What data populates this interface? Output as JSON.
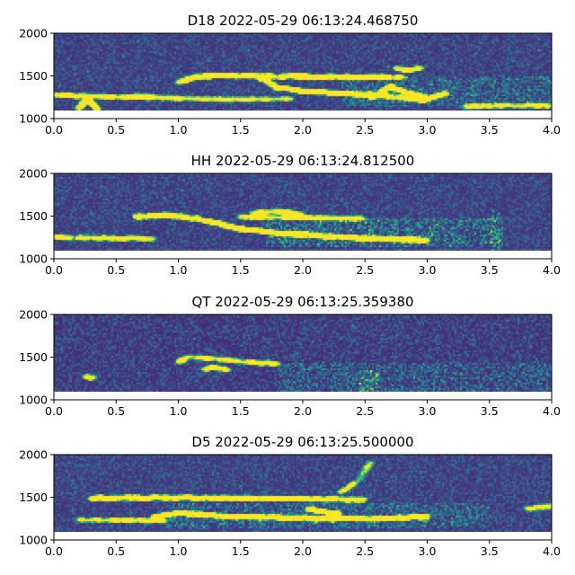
{
  "chart_data": [
    {
      "type": "heatmap",
      "title": "D18 2022-05-29 06:13:24.468750",
      "xlabel": "",
      "ylabel": "",
      "xlim": [
        0,
        4.0
      ],
      "ylim": [
        1000,
        2000
      ],
      "xticks": [
        "0.0",
        "0.5",
        "1.0",
        "1.5",
        "2.0",
        "2.5",
        "3.0",
        "3.5",
        "4.0"
      ],
      "yticks": [
        "1000",
        "1500",
        "2000"
      ],
      "visible_y_range": [
        1100,
        2000
      ],
      "colormap": "viridis",
      "background_level": 0.14,
      "noise_level": 0.22,
      "features": [
        {
          "kind": "curve",
          "points": [
            [
              1.0,
              1430
            ],
            [
              1.15,
              1490
            ],
            [
              1.3,
              1505
            ],
            [
              1.6,
              1500
            ],
            [
              2.0,
              1490
            ],
            [
              2.5,
              1485
            ],
            [
              2.8,
              1490
            ]
          ],
          "intensity": 0.85
        },
        {
          "kind": "curve",
          "points": [
            [
              1.65,
              1480
            ],
            [
              1.8,
              1360
            ],
            [
              2.0,
              1320
            ],
            [
              2.4,
              1290
            ],
            [
              2.7,
              1260
            ],
            [
              3.0,
              1210
            ]
          ],
          "intensity": 0.8
        },
        {
          "kind": "curve",
          "points": [
            [
              2.55,
              1240
            ],
            [
              2.7,
              1370
            ],
            [
              2.85,
              1300
            ],
            [
              3.0,
              1240
            ],
            [
              3.15,
              1290
            ]
          ],
          "intensity": 0.7
        },
        {
          "kind": "curve",
          "points": [
            [
              0.0,
              1280
            ],
            [
              0.3,
              1260
            ],
            [
              0.6,
              1250
            ],
            [
              0.8,
              1245
            ]
          ],
          "intensity": 0.6
        },
        {
          "kind": "curve",
          "points": [
            [
              0.2,
              1120
            ],
            [
              0.27,
              1230
            ],
            [
              0.35,
              1120
            ]
          ],
          "intensity": 0.8
        },
        {
          "kind": "curve",
          "points": [
            [
              0.65,
              1270
            ],
            [
              1.0,
              1235
            ],
            [
              1.5,
              1225
            ],
            [
              1.9,
              1230
            ]
          ],
          "intensity": 0.4
        },
        {
          "kind": "curve",
          "points": [
            [
              2.75,
              1590
            ],
            [
              2.85,
              1560
            ],
            [
              2.95,
              1590
            ]
          ],
          "intensity": 0.55
        },
        {
          "kind": "curve",
          "points": [
            [
              3.3,
              1140
            ],
            [
              3.6,
              1150
            ],
            [
              4.0,
              1150
            ]
          ],
          "intensity": 0.45
        },
        {
          "kind": "band",
          "x": [
            2.3,
            4.0
          ],
          "y": [
            1150,
            1500
          ],
          "intensity": 0.22
        }
      ]
    },
    {
      "type": "heatmap",
      "title": "HH 2022-05-29 06:13:24.812500",
      "xlabel": "",
      "ylabel": "",
      "xlim": [
        0,
        4.0
      ],
      "ylim": [
        1000,
        2000
      ],
      "xticks": [
        "0.0",
        "0.5",
        "1.0",
        "1.5",
        "2.0",
        "2.5",
        "3.0",
        "3.5",
        "4.0"
      ],
      "yticks": [
        "1000",
        "1500",
        "2000"
      ],
      "visible_y_range": [
        1100,
        2000
      ],
      "colormap": "viridis",
      "background_level": 0.14,
      "noise_level": 0.22,
      "features": [
        {
          "kind": "curve",
          "points": [
            [
              0.65,
              1490
            ],
            [
              0.9,
              1510
            ],
            [
              1.1,
              1480
            ],
            [
              1.3,
              1420
            ],
            [
              1.5,
              1350
            ],
            [
              1.8,
              1300
            ],
            [
              2.1,
              1270
            ],
            [
              2.5,
              1240
            ],
            [
              3.0,
              1220
            ]
          ],
          "intensity": 0.85
        },
        {
          "kind": "curve",
          "points": [
            [
              1.5,
              1490
            ],
            [
              2.0,
              1480
            ],
            [
              2.5,
              1470
            ]
          ],
          "intensity": 0.45
        },
        {
          "kind": "curve",
          "points": [
            [
              0.0,
              1250
            ],
            [
              0.4,
              1240
            ],
            [
              0.8,
              1235
            ]
          ],
          "intensity": 0.5
        },
        {
          "kind": "curve",
          "points": [
            [
              1.6,
              1530
            ],
            [
              1.8,
              1560
            ],
            [
              2.0,
              1520
            ]
          ],
          "intensity": 0.5
        },
        {
          "kind": "band",
          "x": [
            1.7,
            3.6
          ],
          "y": [
            1150,
            1480
          ],
          "intensity": 0.28
        },
        {
          "kind": "band",
          "x": [
            3.5,
            3.58
          ],
          "y": [
            1100,
            1600
          ],
          "intensity": 0.25
        }
      ]
    },
    {
      "type": "heatmap",
      "title": "QT 2022-05-29 06:13:25.359380",
      "xlabel": "",
      "ylabel": "",
      "xlim": [
        0,
        4.0
      ],
      "ylim": [
        1000,
        2000
      ],
      "xticks": [
        "0.0",
        "0.5",
        "1.0",
        "1.5",
        "2.0",
        "2.5",
        "3.0",
        "3.5",
        "4.0"
      ],
      "yticks": [
        "1000",
        "1500",
        "2000"
      ],
      "visible_y_range": [
        1100,
        2000
      ],
      "colormap": "viridis",
      "background_level": 0.12,
      "noise_level": 0.24,
      "features": [
        {
          "kind": "curve",
          "points": [
            [
              1.0,
              1440
            ],
            [
              1.05,
              1470
            ]
          ],
          "intensity": 0.9
        },
        {
          "kind": "curve",
          "points": [
            [
              1.05,
              1500
            ],
            [
              1.3,
              1480
            ],
            [
              1.6,
              1440
            ],
            [
              1.8,
              1420
            ]
          ],
          "intensity": 0.5
        },
        {
          "kind": "curve",
          "points": [
            [
              1.2,
              1360
            ],
            [
              1.3,
              1380
            ],
            [
              1.4,
              1350
            ]
          ],
          "intensity": 0.55
        },
        {
          "kind": "curve",
          "points": [
            [
              0.25,
              1270
            ],
            [
              0.32,
              1260
            ]
          ],
          "intensity": 0.7
        },
        {
          "kind": "band",
          "x": [
            1.8,
            4.0
          ],
          "y": [
            1100,
            1450
          ],
          "intensity": 0.2
        },
        {
          "kind": "band",
          "x": [
            2.45,
            2.6
          ],
          "y": [
            1100,
            1350
          ],
          "intensity": 0.35
        }
      ]
    },
    {
      "type": "heatmap",
      "title": "D5 2022-05-29 06:13:25.500000",
      "xlabel": "",
      "ylabel": "",
      "xlim": [
        0,
        4.0
      ],
      "ylim": [
        1000,
        2000
      ],
      "xticks": [
        "0.0",
        "0.5",
        "1.0",
        "1.5",
        "2.0",
        "2.5",
        "3.0",
        "3.5",
        "4.0"
      ],
      "yticks": [
        "1000",
        "1500",
        "2000"
      ],
      "visible_y_range": [
        1100,
        2000
      ],
      "colormap": "viridis",
      "background_level": 0.14,
      "noise_level": 0.23,
      "features": [
        {
          "kind": "curve",
          "points": [
            [
              0.3,
              1490
            ],
            [
              0.8,
              1495
            ],
            [
              1.3,
              1490
            ],
            [
              1.8,
              1485
            ],
            [
              2.2,
              1480
            ],
            [
              2.5,
              1470
            ]
          ],
          "intensity": 0.7
        },
        {
          "kind": "curve",
          "points": [
            [
              0.8,
              1260
            ],
            [
              1.0,
              1320
            ],
            [
              1.3,
              1280
            ],
            [
              1.8,
              1260
            ],
            [
              2.2,
              1250
            ],
            [
              2.6,
              1250
            ],
            [
              3.0,
              1270
            ]
          ],
          "intensity": 0.75
        },
        {
          "kind": "curve",
          "points": [
            [
              2.05,
              1370
            ],
            [
              2.15,
              1330
            ],
            [
              2.3,
              1300
            ]
          ],
          "intensity": 0.85
        },
        {
          "kind": "curve",
          "points": [
            [
              0.2,
              1240
            ],
            [
              0.5,
              1230
            ],
            [
              0.9,
              1225
            ]
          ],
          "intensity": 0.5
        },
        {
          "kind": "curve",
          "points": [
            [
              2.3,
              1550
            ],
            [
              2.45,
              1700
            ],
            [
              2.55,
              1920
            ]
          ],
          "intensity": 0.4
        },
        {
          "kind": "curve",
          "points": [
            [
              3.8,
              1370
            ],
            [
              4.0,
              1390
            ]
          ],
          "intensity": 0.5
        },
        {
          "kind": "band",
          "x": [
            0.9,
            3.5
          ],
          "y": [
            1150,
            1450
          ],
          "intensity": 0.22
        }
      ]
    }
  ]
}
